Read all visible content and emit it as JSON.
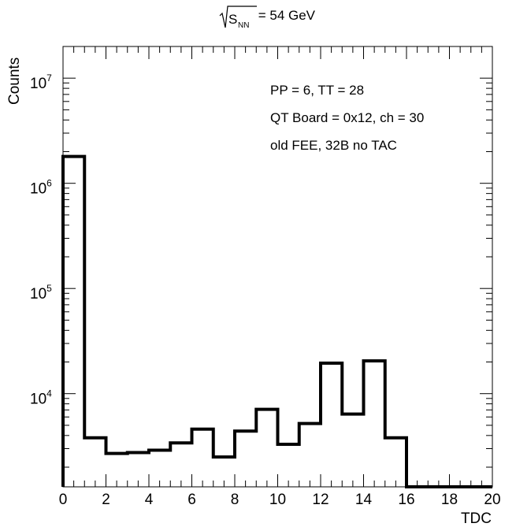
{
  "chart_data": {
    "type": "bar",
    "title": {
      "prefix": "S",
      "subscript": "NN",
      "suffix": " = 54 GeV"
    },
    "xlabel": "TDC",
    "ylabel": "Counts",
    "xlim": [
      0,
      20
    ],
    "ylim": [
      1300,
      20000000
    ],
    "log_y": true,
    "grid": false,
    "x_ticks": [
      "0",
      "2",
      "4",
      "6",
      "8",
      "10",
      "12",
      "14",
      "16",
      "18",
      "20"
    ],
    "y_ticks": [
      {
        "value": 10000,
        "base": "10",
        "exp": "4"
      },
      {
        "value": 100000,
        "base": "10",
        "exp": "5"
      },
      {
        "value": 1000000,
        "base": "10",
        "exp": "6"
      },
      {
        "value": 10000000,
        "base": "10",
        "exp": "7"
      }
    ],
    "bin_edges": [
      0,
      1,
      2,
      3,
      4,
      5,
      6,
      7,
      8,
      9,
      10,
      11,
      12,
      13,
      14,
      15,
      16,
      17,
      18,
      19,
      20
    ],
    "values": [
      1800000,
      3800,
      2700,
      2750,
      2900,
      3400,
      4600,
      2500,
      4400,
      7100,
      3300,
      5200,
      19500,
      6400,
      20500,
      3800,
      1300,
      1300,
      1300,
      1300
    ],
    "annotations": [
      "PP = 6, TT = 28",
      "QT Board = 0x12, ch = 30",
      "old FEE, 32B no TAC"
    ]
  }
}
